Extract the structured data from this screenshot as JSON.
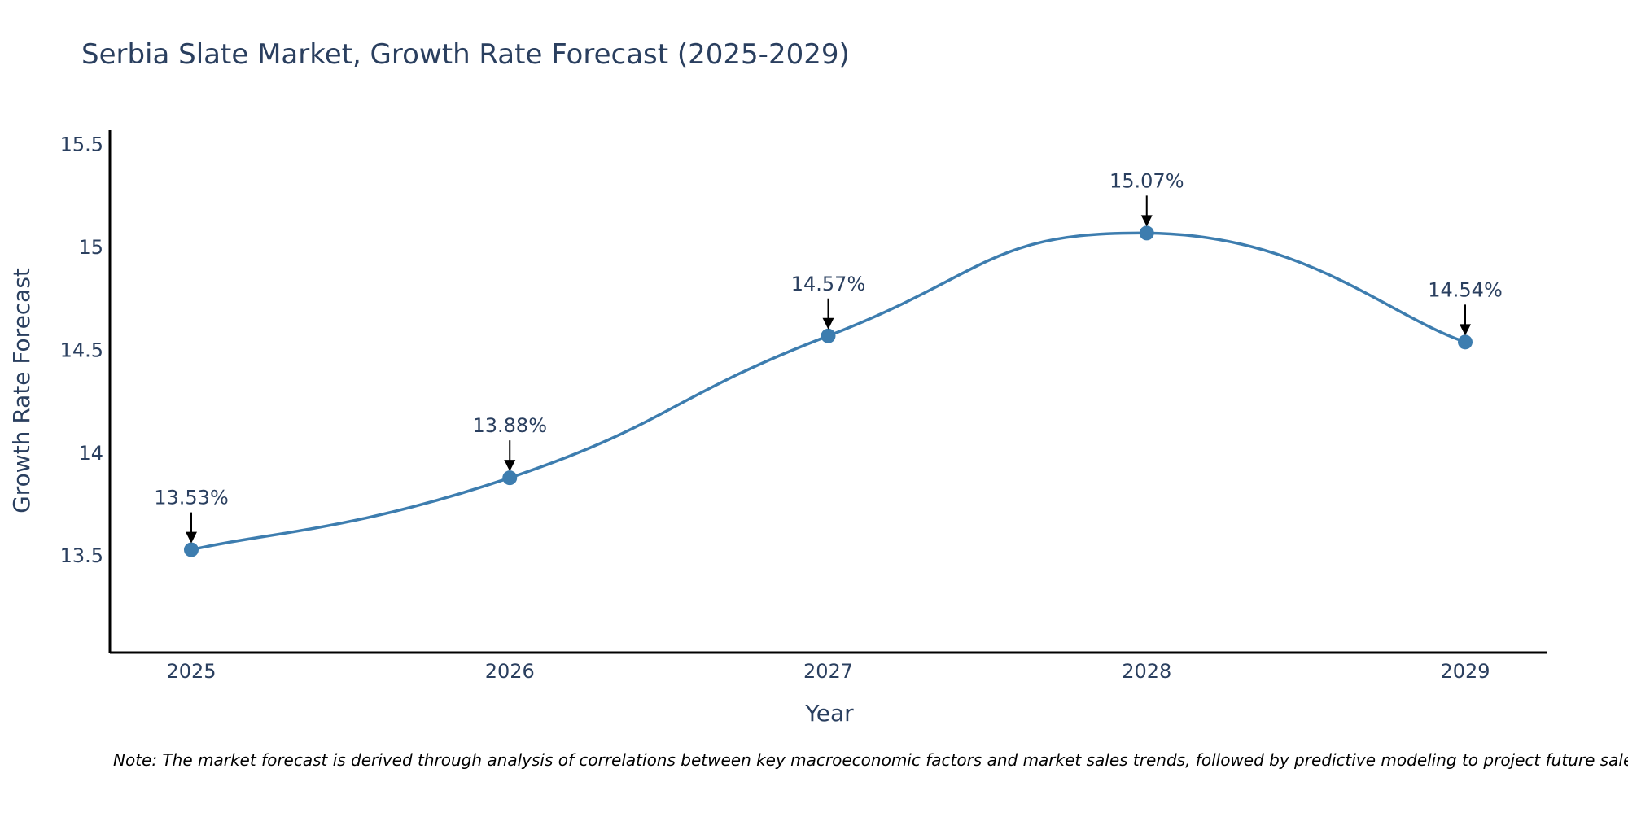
{
  "colors": {
    "series": "#3d7daf",
    "text": "#2a3f5f",
    "axis": "#000000",
    "annotation": "#000000",
    "background": "#ffffff"
  },
  "chart_data": {
    "type": "line",
    "title": "Serbia Slate Market, Growth Rate Forecast (2025-2029)",
    "xlabel": "Year",
    "ylabel": "Growth Rate Forecast",
    "categories": [
      "2025",
      "2026",
      "2027",
      "2028",
      "2029"
    ],
    "series": [
      {
        "name": "Growth Rate Forecast",
        "values": [
          13.53,
          13.88,
          14.57,
          15.07,
          14.54
        ],
        "labels": [
          "13.53%",
          "13.88%",
          "14.57%",
          "15.07%",
          "14.54%"
        ],
        "line_shape": "spline",
        "markers": true
      }
    ],
    "ylim": [
      13.03,
      15.57
    ],
    "yticks": [
      13.5,
      14,
      14.5,
      15,
      15.5
    ],
    "ytick_labels": [
      "13.5",
      "14",
      "14.5",
      "15",
      "15.5"
    ],
    "grid": false,
    "legend": "none",
    "note": "Note: The market forecast is derived through analysis of correlations between key macroeconomic factors and market sales trends, followed by predictive modeling to project future sales."
  }
}
